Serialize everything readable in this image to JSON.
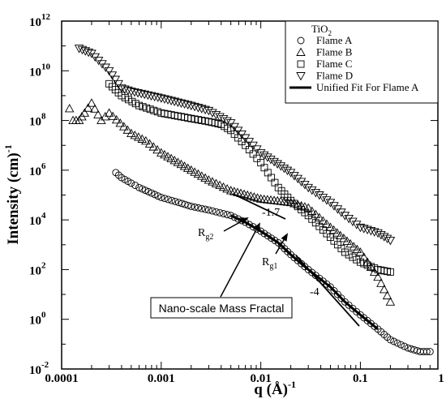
{
  "chart_data": {
    "type": "scatter",
    "x_scale": "log",
    "y_scale": "log",
    "xlim": [
      0.0001,
      0.6
    ],
    "ylim": [
      0.01,
      1000000000000
    ],
    "xlabel": "q (Å)",
    "xlabel_sup": "-1",
    "ylabel": "Intensity (cm)",
    "ylabel_sup": "-1",
    "x_ticks": [
      {
        "value": 0.0001,
        "label": "0.0001"
      },
      {
        "value": 0.001,
        "label": "0.001"
      },
      {
        "value": 0.01,
        "label": "0.01"
      },
      {
        "value": 0.1,
        "label": "0.1"
      },
      {
        "value": 1,
        "label": "1"
      }
    ],
    "y_ticks": [
      {
        "value": 0.01,
        "base": "10",
        "exp": "-2"
      },
      {
        "value": 1,
        "base": "10",
        "exp": "0"
      },
      {
        "value": 100,
        "base": "10",
        "exp": "2"
      },
      {
        "value": 10000,
        "base": "10",
        "exp": "4"
      },
      {
        "value": 1000000,
        "base": "10",
        "exp": "6"
      },
      {
        "value": 100000000,
        "base": "10",
        "exp": "8"
      },
      {
        "value": 10000000000,
        "base": "10",
        "exp": "10"
      },
      {
        "value": 1000000000000,
        "base": "10",
        "exp": "12"
      }
    ],
    "legend": {
      "placement": "top-right",
      "title": "TiO",
      "title_sub": "2",
      "entries": [
        "Flame A",
        "Flame B",
        "Flame C",
        "Flame D",
        "Unified Fit For Flame A"
      ]
    },
    "series": [
      {
        "name": "Flame A",
        "marker": "circle",
        "points": [
          [
            0.00035,
            800000
          ],
          [
            0.0004,
            500000
          ],
          [
            0.0005,
            300000
          ],
          [
            0.0006,
            200000
          ],
          [
            0.0008,
            120000
          ],
          [
            0.001,
            80000
          ],
          [
            0.0015,
            50000
          ],
          [
            0.002,
            35000
          ],
          [
            0.003,
            25000
          ],
          [
            0.005,
            15000
          ],
          [
            0.007,
            8000
          ],
          [
            0.01,
            3500
          ],
          [
            0.015,
            1200
          ],
          [
            0.02,
            400
          ],
          [
            0.03,
            100
          ],
          [
            0.05,
            20
          ],
          [
            0.07,
            5
          ],
          [
            0.1,
            1.5
          ],
          [
            0.15,
            0.4
          ],
          [
            0.2,
            0.15
          ],
          [
            0.3,
            0.07
          ],
          [
            0.4,
            0.05
          ],
          [
            0.5,
            0.05
          ]
        ]
      },
      {
        "name": "Flame B",
        "marker": "triangle-up",
        "points": [
          [
            0.00012,
            300000000
          ],
          [
            0.00013,
            100000000
          ],
          [
            0.00015,
            100000000
          ],
          [
            0.00017,
            200000000
          ],
          [
            0.0002,
            500000000
          ],
          [
            0.00025,
            100000000
          ],
          [
            0.0003,
            200000000
          ],
          [
            0.0005,
            30000000
          ],
          [
            0.0007,
            15000000
          ],
          [
            0.001,
            5000000
          ],
          [
            0.002,
            1000000
          ],
          [
            0.003,
            400000
          ],
          [
            0.005,
            150000
          ],
          [
            0.01,
            70000
          ],
          [
            0.02,
            50000
          ],
          [
            0.03,
            30000
          ],
          [
            0.05,
            5000
          ],
          [
            0.1,
            500
          ],
          [
            0.15,
            50
          ],
          [
            0.2,
            5
          ]
        ]
      },
      {
        "name": "Flame C",
        "marker": "square",
        "points": [
          [
            0.0003,
            3000000000
          ],
          [
            0.0004,
            1000000000
          ],
          [
            0.0006,
            400000000
          ],
          [
            0.001,
            200000000
          ],
          [
            0.002,
            120000000
          ],
          [
            0.003,
            90000000
          ],
          [
            0.004,
            70000000
          ],
          [
            0.005,
            40000000
          ],
          [
            0.007,
            10000000
          ],
          [
            0.01,
            2000000
          ],
          [
            0.015,
            200000
          ],
          [
            0.02,
            60000
          ],
          [
            0.03,
            15000
          ],
          [
            0.05,
            2000
          ],
          [
            0.07,
            500
          ],
          [
            0.1,
            200
          ],
          [
            0.15,
            100
          ],
          [
            0.2,
            80
          ]
        ]
      },
      {
        "name": "Flame D",
        "marker": "triangle-down",
        "points": [
          [
            0.00015,
            80000000000
          ],
          [
            0.0002,
            50000000000
          ],
          [
            0.0003,
            10000000000
          ],
          [
            0.0004,
            2000000000
          ],
          [
            0.0005,
            1500000000
          ],
          [
            0.001,
            800000000
          ],
          [
            0.002,
            400000000
          ],
          [
            0.003,
            250000000
          ],
          [
            0.005,
            80000000
          ],
          [
            0.007,
            20000000
          ],
          [
            0.01,
            5000000
          ],
          [
            0.02,
            800000
          ],
          [
            0.03,
            200000
          ],
          [
            0.05,
            50000
          ],
          [
            0.07,
            15000
          ],
          [
            0.1,
            5000
          ],
          [
            0.15,
            3000
          ],
          [
            0.2,
            1500
          ]
        ]
      }
    ],
    "fit": {
      "name": "Unified Fit For Flame A",
      "points": [
        [
          0.005,
          15000
        ],
        [
          0.007,
          8000
        ],
        [
          0.01,
          3500
        ],
        [
          0.015,
          1200
        ],
        [
          0.02,
          400
        ],
        [
          0.03,
          100
        ],
        [
          0.05,
          20
        ],
        [
          0.07,
          5
        ],
        [
          0.1,
          1.5
        ],
        [
          0.15,
          0.4
        ]
      ]
    },
    "annotations": {
      "slope1": "-1.7",
      "slope2": "-4",
      "rg2": "R",
      "rg2_sub": "g2",
      "rg1": "R",
      "rg1_sub": "g1",
      "box": "Nano-scale Mass Fractal"
    }
  }
}
